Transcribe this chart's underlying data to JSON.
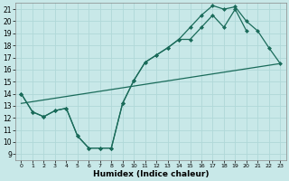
{
  "xlabel": "Humidex (Indice chaleur)",
  "xlim": [
    -0.5,
    23.5
  ],
  "ylim": [
    8.5,
    21.5
  ],
  "xticks": [
    0,
    1,
    2,
    3,
    4,
    5,
    6,
    7,
    8,
    9,
    10,
    11,
    12,
    13,
    14,
    15,
    16,
    17,
    18,
    19,
    20,
    21,
    22,
    23
  ],
  "yticks": [
    9,
    10,
    11,
    12,
    13,
    14,
    15,
    16,
    17,
    18,
    19,
    20,
    21
  ],
  "background_color": "#c8e8e8",
  "grid_color": "#b0d8d8",
  "line_color": "#1a6b5a",
  "line1_x": [
    0,
    1,
    2,
    3,
    4,
    5,
    6,
    7,
    8,
    9,
    10,
    11,
    12,
    13,
    14,
    15,
    16,
    17,
    18,
    19,
    20
  ],
  "line1_y": [
    14.0,
    12.5,
    12.1,
    12.6,
    12.8,
    10.5,
    9.5,
    9.5,
    9.5,
    13.2,
    15.1,
    16.6,
    17.2,
    17.8,
    18.5,
    18.5,
    19.5,
    20.5,
    19.5,
    21.0,
    19.2
  ],
  "line2_x": [
    0,
    1,
    2,
    3,
    4,
    5,
    6,
    7,
    8,
    9,
    10,
    11,
    12,
    13,
    14,
    15,
    16,
    17,
    18,
    19,
    20,
    21,
    22,
    23
  ],
  "line2_y": [
    14.0,
    12.5,
    12.1,
    12.6,
    12.8,
    10.5,
    9.5,
    9.5,
    9.5,
    13.2,
    15.1,
    16.6,
    17.2,
    17.8,
    18.5,
    19.5,
    20.5,
    21.3,
    21.0,
    21.2,
    20.0,
    19.2,
    17.8,
    16.5
  ],
  "line3_x": [
    0,
    23
  ],
  "line3_y": [
    13.2,
    16.5
  ],
  "markersize": 2.5,
  "linewidth": 0.9
}
